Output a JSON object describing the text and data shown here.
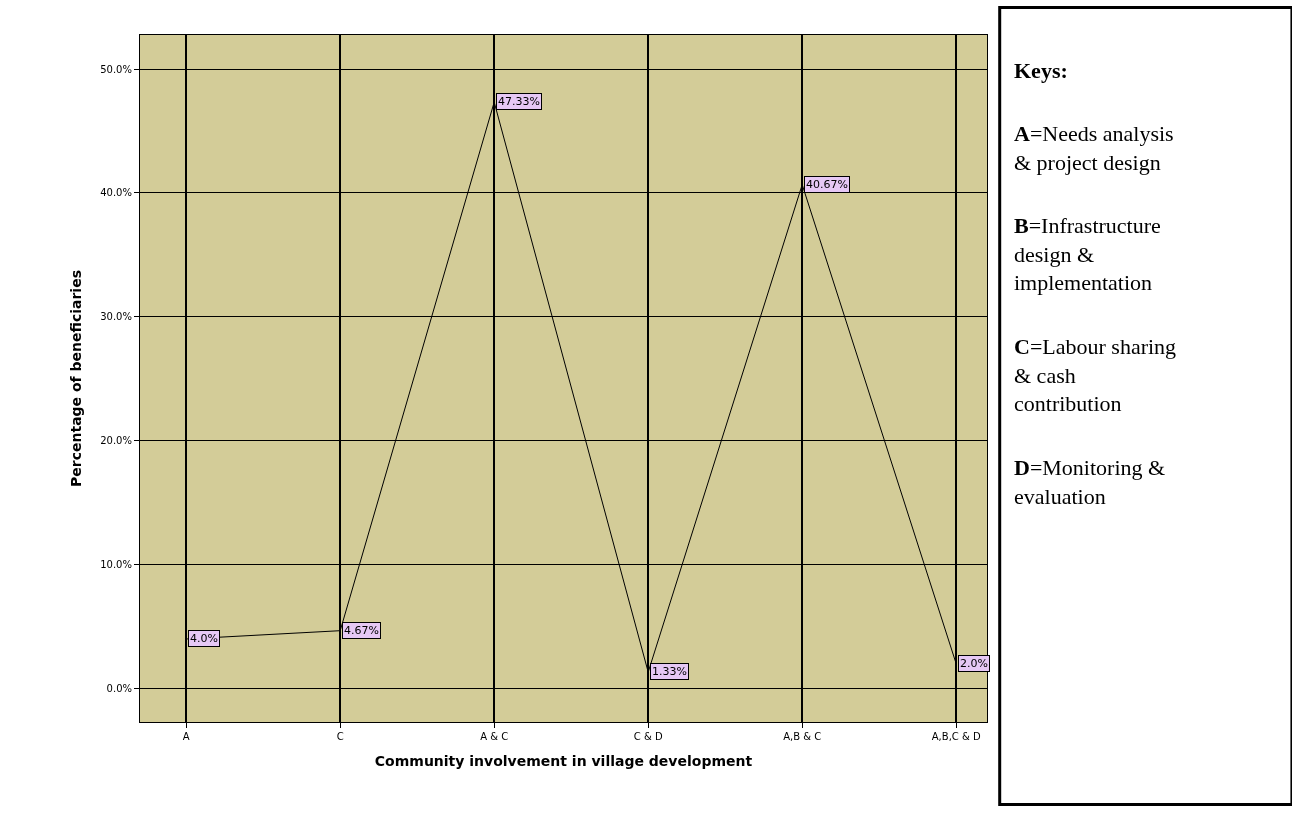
{
  "chart_data": {
    "type": "line",
    "xlabel": "Community involvement in village development",
    "ylabel": "Percentage of beneficiaries",
    "categories": [
      "A",
      "C",
      "A & C",
      "C & D",
      "A,B & C",
      "A,B,C & D"
    ],
    "series": [
      {
        "color": "#000000",
        "values": [
          4.0,
          4.67,
          47.33,
          1.33,
          40.67,
          2.0
        ],
        "value_labels": [
          "4.0%",
          "4.67%",
          "47.33%",
          "1.33%",
          "40.67%",
          "2.0%"
        ]
      }
    ],
    "ylim": [
      -2.7,
      52.75
    ],
    "yticks": [
      {
        "value": 0,
        "label": "0.0%"
      },
      {
        "value": 10,
        "label": "10.0%"
      },
      {
        "value": 20,
        "label": "20.0%"
      },
      {
        "value": 30,
        "label": "30.0%"
      },
      {
        "value": 40,
        "label": "40.0%"
      },
      {
        "value": 50,
        "label": "50.0%"
      }
    ],
    "grid": true,
    "legend": false,
    "marker": "none",
    "line_style": "solid",
    "annotations": [
      "Keys:",
      "A=Needs analysis & project design",
      "B=Infrastructure design & implementation",
      "C=Labour sharing & cash contribution",
      "D=Monitoring & evaluation"
    ]
  }
}
